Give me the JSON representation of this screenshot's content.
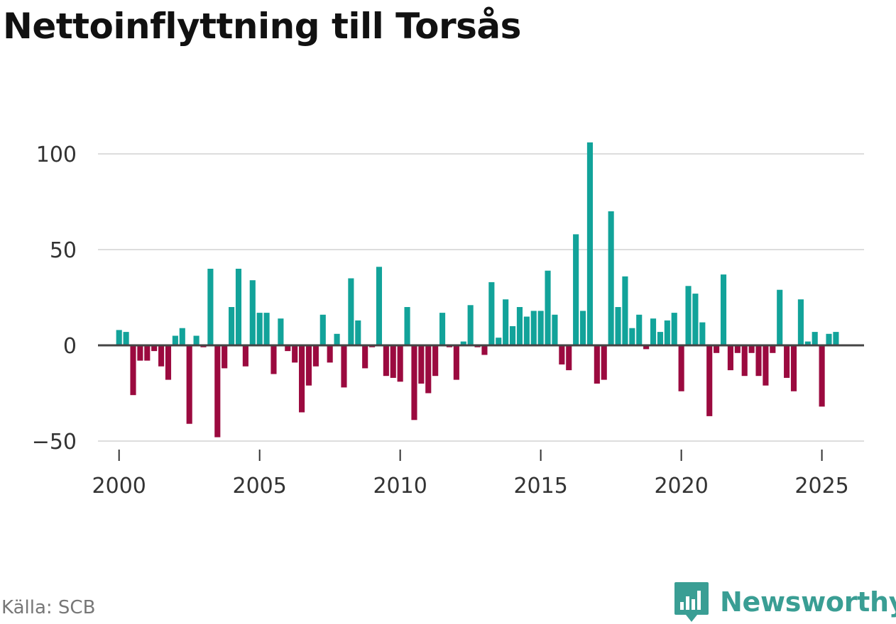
{
  "title": "Nettoinflyttning till Torsås",
  "source": "Källa: SCB",
  "brand": {
    "name": "Newsworthy",
    "icon": "newsworthy-logo-icon"
  },
  "colors": {
    "positive": "#12a39a",
    "negative": "#9b0a3f",
    "grid": "#dddddd",
    "zero": "#444444",
    "brand": "#3a9e94"
  },
  "chart_data": {
    "type": "bar",
    "title": "Nettoinflyttning till Torsås",
    "xlabel": "",
    "ylabel": "",
    "ylim": [
      -50,
      100
    ],
    "xlim": [
      1999.25,
      2026.5
    ],
    "y_ticks": [
      -50,
      0,
      50,
      100
    ],
    "y_tick_labels": [
      "−50",
      "0",
      "50",
      "100"
    ],
    "x_ticks": [
      2000,
      2005,
      2010,
      2015,
      2020,
      2025
    ],
    "x_tick_labels": [
      "2000",
      "2005",
      "2010",
      "2015",
      "2020",
      "2025"
    ],
    "grid": true,
    "period": "quarterly",
    "start_year": 2000,
    "values": [
      8,
      7,
      -26,
      -8,
      -8,
      -3,
      -11,
      -18,
      5,
      9,
      -41,
      5,
      -1,
      40,
      -48,
      -12,
      20,
      40,
      -11,
      34,
      17,
      17,
      -15,
      14,
      -3,
      -9,
      -35,
      -21,
      -11,
      16,
      -9,
      6,
      -22,
      35,
      13,
      -12,
      -1,
      41,
      -16,
      -17,
      -19,
      20,
      -39,
      -20,
      -25,
      -16,
      17,
      -1,
      -18,
      2,
      21,
      -1,
      -5,
      33,
      4,
      24,
      10,
      20,
      15,
      18,
      18,
      39,
      16,
      -10,
      -13,
      58,
      18,
      106,
      -20,
      -18,
      70,
      20,
      36,
      9,
      16,
      -2,
      14,
      7,
      13,
      17,
      -24,
      31,
      27,
      12,
      -37,
      -4,
      37,
      -13,
      -4,
      -16,
      -4,
      -16,
      -21,
      -4,
      29,
      -17,
      -24,
      24,
      2,
      7,
      -32,
      6,
      7
    ]
  }
}
